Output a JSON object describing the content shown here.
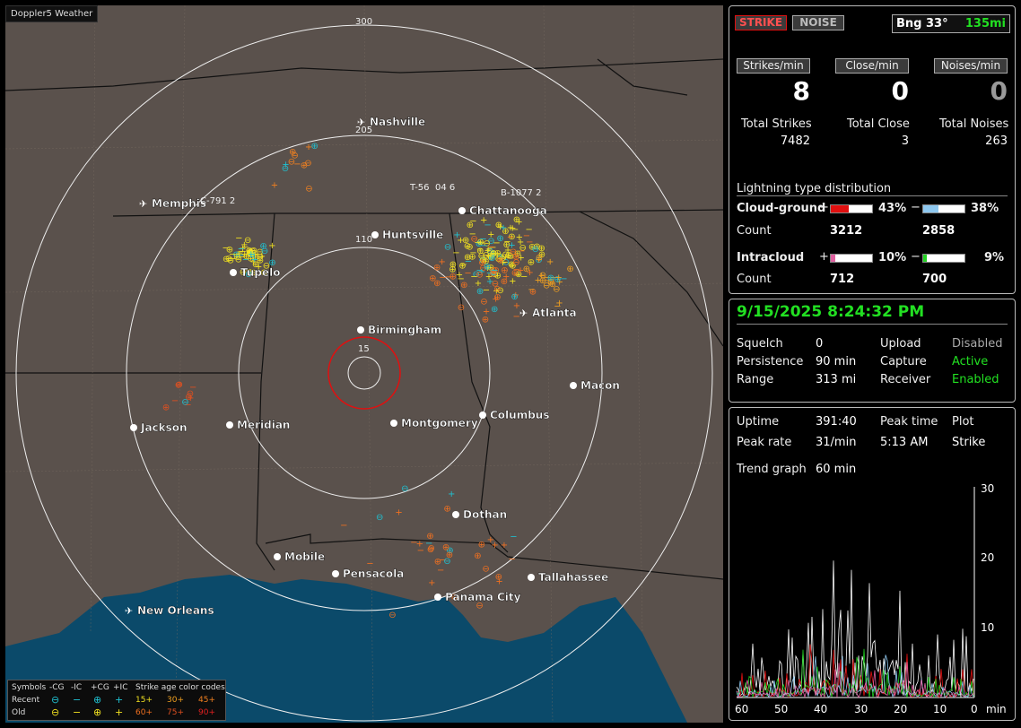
{
  "app_title": "Doppler5 Weather",
  "map": {
    "range_labels": [
      "300",
      "205",
      "110",
      "15"
    ],
    "cities": [
      {
        "name": "Nashville",
        "type": "airport"
      },
      {
        "name": "Memphis",
        "type": "airport"
      },
      {
        "name": "Chattanooga",
        "type": "city"
      },
      {
        "name": "Huntsville",
        "type": "city"
      },
      {
        "name": "Tupelo",
        "type": "city"
      },
      {
        "name": "Birmingham",
        "type": "city"
      },
      {
        "name": "Atlanta",
        "type": "airport"
      },
      {
        "name": "Macon",
        "type": "city"
      },
      {
        "name": "Jackson",
        "type": "city"
      },
      {
        "name": "Meridian",
        "type": "city"
      },
      {
        "name": "Montgomery",
        "type": "city"
      },
      {
        "name": "Columbus",
        "type": "city"
      },
      {
        "name": "Dothan",
        "type": "city"
      },
      {
        "name": "Mobile",
        "type": "city"
      },
      {
        "name": "Pensacola",
        "type": "city"
      },
      {
        "name": "Tallahassee",
        "type": "city"
      },
      {
        "name": "Panama City",
        "type": "city"
      },
      {
        "name": "New Orleans",
        "type": "airport"
      }
    ],
    "storm_labels": [
      "C-791 2",
      "T-56",
      "04 6",
      "B-1077 2"
    ]
  },
  "legend": {
    "symbols": "Symbols",
    "cols": [
      "-CG",
      "-IC",
      "+CG",
      "+IC"
    ],
    "recent": "Recent",
    "old": "Old",
    "age_title": "Strike age color codes",
    "recent_ages": [
      "15+",
      "30+",
      "45+"
    ],
    "old_ages": [
      "60+",
      "75+",
      "90+"
    ]
  },
  "top": {
    "strike_btn": "STRIKE",
    "noise_btn": "NOISE",
    "bearing": "Bng 33°",
    "distance": "135mi",
    "rate_labels": [
      "Strikes/min",
      "Close/min",
      "Noises/min"
    ],
    "rate_values": [
      "8",
      "0",
      "0"
    ],
    "total_labels": [
      "Total Strikes",
      "Total Close",
      "Total Noises"
    ],
    "total_values": [
      "7482",
      "3",
      "263"
    ],
    "dist_title": "Lightning type distribution",
    "cg_label": "Cloud-ground",
    "ic_label": "Intracloud",
    "count_label": "Count",
    "plus": "+",
    "minus": "−",
    "cg_pos_pct": "43%",
    "cg_neg_pct": "38%",
    "cg_pos_count": "3212",
    "cg_neg_count": "2858",
    "ic_pos_pct": "10%",
    "ic_neg_pct": "9%",
    "ic_pos_count": "712",
    "ic_neg_count": "700",
    "cg_pos_frac": 0.43,
    "cg_neg_frac": 0.38,
    "ic_pos_frac": 0.1,
    "ic_neg_frac": 0.09
  },
  "status": {
    "datetime": "9/15/2025 8:24:32 PM",
    "squelch_label": "Squelch",
    "squelch": "0",
    "persistence_label": "Persistence",
    "persistence": "90 min",
    "range_label": "Range",
    "range": "313 mi",
    "upload_label": "Upload",
    "upload": "Disabled",
    "capture_label": "Capture",
    "capture": "Active",
    "receiver_label": "Receiver",
    "receiver": "Enabled"
  },
  "trend": {
    "uptime_label": "Uptime",
    "uptime": "391:40",
    "peak_time_label": "Peak time",
    "peak_time": "5:13 AM",
    "plot_label": "Plot",
    "plot": "Strike",
    "peak_rate_label": "Peak rate",
    "peak_rate": "31/min",
    "trend_label": "Trend graph",
    "trend_window": "60 min",
    "y_ticks": [
      "30",
      "20",
      "10"
    ],
    "x_ticks": [
      "60",
      "50",
      "40",
      "30",
      "20",
      "10",
      "0"
    ],
    "x_unit": "min"
  },
  "colors": {
    "strike_red": "#e01010",
    "accent_green": "#22e022",
    "cg_pos": "#e01010",
    "cg_neg": "#8ec8f0",
    "ic_pos": "#e060a0",
    "ic_neg": "#20d020",
    "map_bg": "#5a514c",
    "water": "#0b4a6a"
  }
}
